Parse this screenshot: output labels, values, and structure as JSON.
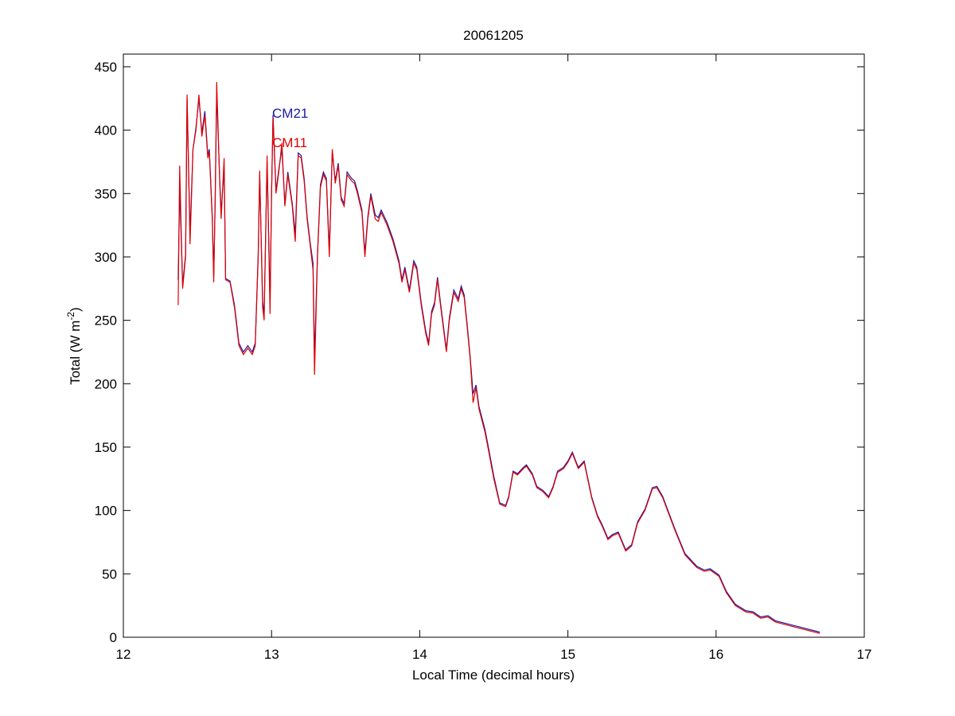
{
  "chart_data": {
    "type": "line",
    "title": "20061205",
    "xlabel": "Local Time (decimal hours)",
    "ylabel": {
      "text": "Total (W m",
      "superscript": "-2",
      "suffix": ")"
    },
    "xlim": [
      12,
      17
    ],
    "xticks": [
      12,
      13,
      14,
      15,
      16,
      17
    ],
    "ylim": [
      0,
      460
    ],
    "yticks": [
      0,
      50,
      100,
      150,
      200,
      250,
      300,
      350,
      400,
      450
    ],
    "grid": false,
    "x": [
      12.37,
      12.38,
      12.4,
      12.42,
      12.43,
      12.45,
      12.47,
      12.49,
      12.51,
      12.53,
      12.55,
      12.57,
      12.58,
      12.6,
      12.61,
      12.62,
      12.63,
      12.65,
      12.66,
      12.68,
      12.69,
      12.72,
      12.75,
      12.78,
      12.81,
      12.84,
      12.87,
      12.89,
      12.91,
      12.92,
      12.94,
      12.95,
      12.97,
      12.99,
      13.0,
      13.01,
      13.03,
      13.05,
      13.07,
      13.09,
      13.11,
      13.14,
      13.16,
      13.18,
      13.2,
      13.22,
      13.24,
      13.26,
      13.28,
      13.29,
      13.31,
      13.33,
      13.35,
      13.37,
      13.39,
      13.41,
      13.43,
      13.45,
      13.47,
      13.49,
      13.51,
      13.54,
      13.56,
      13.58,
      13.61,
      13.63,
      13.65,
      13.67,
      13.7,
      13.72,
      13.74,
      13.78,
      13.82,
      13.86,
      13.88,
      13.9,
      13.93,
      13.96,
      13.98,
      14.01,
      14.04,
      14.06,
      14.08,
      14.1,
      14.12,
      14.14,
      14.18,
      14.2,
      14.23,
      14.26,
      14.28,
      14.3,
      14.32,
      14.34,
      14.36,
      14.38,
      14.4,
      14.44,
      14.46,
      14.5,
      14.54,
      14.58,
      14.6,
      14.63,
      14.66,
      14.7,
      14.72,
      14.76,
      14.79,
      14.83,
      14.87,
      14.9,
      14.93,
      14.97,
      15.0,
      15.03,
      15.07,
      15.11,
      15.16,
      15.2,
      15.23,
      15.27,
      15.3,
      15.34,
      15.39,
      15.43,
      15.47,
      15.52,
      15.57,
      15.6,
      15.64,
      15.72,
      15.79,
      15.87,
      15.92,
      15.96,
      16.02,
      16.07,
      16.13,
      16.2,
      16.25,
      16.3,
      16.35,
      16.4,
      16.5,
      16.6,
      16.7
    ],
    "series": [
      {
        "name": "CM21",
        "color": "#1a1aa8",
        "values": [
          282,
          355,
          278,
          302,
          425,
          318,
          385,
          402,
          425,
          398,
          415,
          380,
          385,
          332,
          285,
          345,
          430,
          362,
          335,
          370,
          283,
          281,
          262,
          232,
          225,
          230,
          225,
          232,
          302,
          365,
          265,
          255,
          375,
          265,
          348,
          412,
          352,
          370,
          385,
          342,
          367,
          342,
          318,
          382,
          380,
          362,
          332,
          312,
          295,
          220,
          302,
          357,
          367,
          362,
          305,
          383,
          360,
          374,
          347,
          342,
          367,
          362,
          360,
          352,
          337,
          303,
          332,
          350,
          333,
          331,
          337,
          327,
          314,
          297,
          282,
          292,
          274,
          297,
          292,
          264,
          242,
          232,
          257,
          264,
          284,
          264,
          227,
          252,
          274,
          267,
          277,
          270,
          247,
          222,
          192,
          199,
          182,
          164,
          152,
          127,
          106,
          104,
          111,
          131,
          129,
          134,
          136,
          129,
          119,
          116,
          111,
          119,
          131,
          134,
          139,
          146,
          134,
          139,
          111,
          96,
          89,
          78,
          81,
          83,
          69,
          73,
          91,
          101,
          118,
          119,
          111,
          86,
          66,
          56,
          53,
          54,
          49,
          36,
          26,
          21,
          20,
          16,
          17,
          13,
          10,
          7,
          4
        ]
      },
      {
        "name": "CM11",
        "color": "#e00000",
        "values": [
          262,
          372,
          275,
          300,
          428,
          310,
          385,
          400,
          428,
          395,
          412,
          378,
          383,
          330,
          280,
          350,
          438,
          360,
          330,
          378,
          282,
          280,
          260,
          230,
          223,
          228,
          223,
          230,
          300,
          368,
          260,
          250,
          380,
          255,
          350,
          410,
          350,
          368,
          390,
          340,
          365,
          340,
          312,
          380,
          378,
          360,
          330,
          310,
          290,
          207,
          300,
          355,
          365,
          360,
          300,
          385,
          358,
          372,
          345,
          340,
          365,
          360,
          358,
          350,
          335,
          300,
          330,
          348,
          330,
          328,
          335,
          325,
          312,
          295,
          280,
          290,
          272,
          295,
          290,
          262,
          240,
          230,
          255,
          262,
          282,
          262,
          225,
          250,
          272,
          265,
          275,
          268,
          245,
          220,
          185,
          197,
          180,
          162,
          150,
          125,
          105,
          103,
          110,
          130,
          128,
          133,
          135,
          128,
          118,
          115,
          110,
          118,
          130,
          133,
          138,
          145,
          133,
          138,
          110,
          95,
          88,
          77,
          80,
          82,
          68,
          72,
          90,
          100,
          117,
          118,
          110,
          85,
          65,
          55,
          52,
          53,
          48,
          35,
          25,
          20,
          19,
          15,
          16,
          12,
          9,
          6,
          3
        ]
      }
    ]
  }
}
